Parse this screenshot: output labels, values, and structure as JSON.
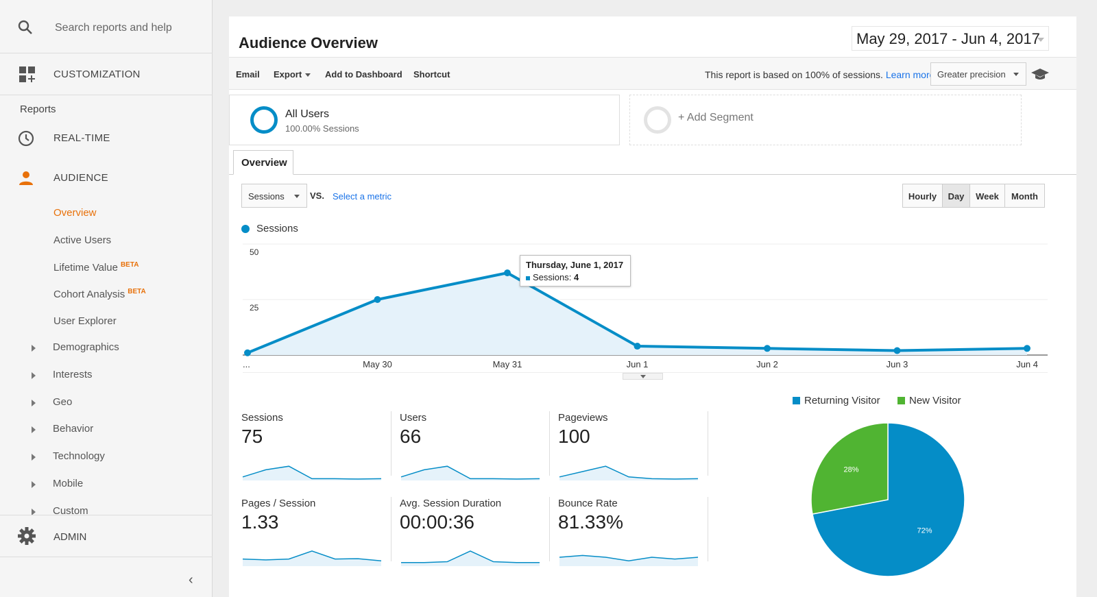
{
  "sidebar": {
    "search_placeholder": "Search reports and help",
    "customization": "CUSTOMIZATION",
    "reports_heading": "Reports",
    "realtime": "REAL-TIME",
    "audience": "AUDIENCE",
    "sub_items": [
      "Overview",
      "Active Users",
      "Lifetime Value",
      "Cohort Analysis",
      "User Explorer"
    ],
    "beta": "BETA",
    "expandables": [
      "Demographics",
      "Interests",
      "Geo",
      "Behavior",
      "Technology",
      "Mobile",
      "Custom"
    ],
    "admin": "ADMIN",
    "collapse": "‹"
  },
  "header": {
    "title": "Audience Overview",
    "date_range": "May 29, 2017 - Jun 4, 2017"
  },
  "toolbar": {
    "email": "Email",
    "export": "Export",
    "add_to_dashboard": "Add to Dashboard",
    "shortcut": "Shortcut",
    "sampling_note": "This report is based on 100% of sessions.",
    "learn_more": "Learn more",
    "precision": "Greater precision"
  },
  "segments": {
    "all_users": "All Users",
    "all_users_sub": "100.00% Sessions",
    "add_segment": "+ Add Segment"
  },
  "tabs": {
    "overview": "Overview"
  },
  "controls": {
    "metric": "Sessions",
    "vs": "VS.",
    "select_metric": "Select a metric",
    "granularity": [
      "Hourly",
      "Day",
      "Week",
      "Month"
    ],
    "active_granularity": "Day"
  },
  "chart_data": {
    "type": "area",
    "series": [
      {
        "name": "Sessions",
        "values": [
          1,
          25,
          37,
          4,
          3,
          2,
          3
        ]
      }
    ],
    "x": [
      "...",
      "May 30",
      "May 31",
      "Jun 1",
      "Jun 2",
      "Jun 3",
      "Jun 4"
    ],
    "ylim": [
      0,
      50
    ],
    "y_ticks": [
      25,
      50
    ],
    "color": "#058dc7"
  },
  "tooltip": {
    "date": "Thursday, June 1, 2017",
    "metric_label": "Sessions:",
    "metric_value": "4"
  },
  "metrics": [
    {
      "label": "Sessions",
      "value": "75",
      "spark": [
        0.2,
        0.6,
        0.8,
        0.1,
        0.1,
        0.08,
        0.1
      ]
    },
    {
      "label": "Users",
      "value": "66",
      "spark": [
        0.2,
        0.6,
        0.8,
        0.1,
        0.1,
        0.08,
        0.1
      ]
    },
    {
      "label": "Pageviews",
      "value": "100",
      "spark": [
        0.2,
        0.5,
        0.8,
        0.2,
        0.1,
        0.08,
        0.1
      ]
    },
    {
      "label": "Pages / Session",
      "value": "1.33",
      "spark": [
        0.4,
        0.35,
        0.4,
        0.85,
        0.4,
        0.42,
        0.3
      ]
    },
    {
      "label": "Avg. Session Duration",
      "value": "00:00:36",
      "spark": [
        0.2,
        0.2,
        0.25,
        0.85,
        0.25,
        0.2,
        0.2
      ]
    },
    {
      "label": "Bounce Rate",
      "value": "81.33%",
      "spark": [
        0.5,
        0.6,
        0.5,
        0.3,
        0.5,
        0.4,
        0.5
      ]
    }
  ],
  "pie": {
    "legend": [
      {
        "name": "Returning Visitor",
        "color": "#058dc7",
        "percent": 72,
        "label": "72%"
      },
      {
        "name": "New Visitor",
        "color": "#50b432",
        "percent": 28,
        "label": "28%"
      }
    ]
  }
}
